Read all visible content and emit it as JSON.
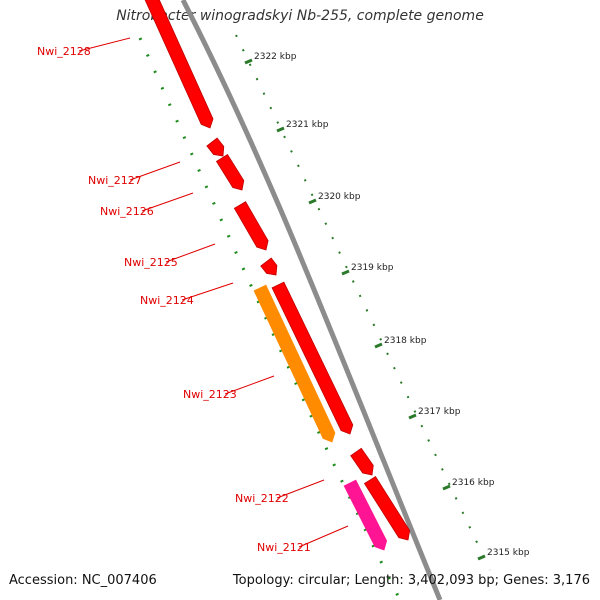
{
  "title": "Nitrobacter winogradskyi Nb-255, complete genome",
  "footer": {
    "accession": "Accession: NC_007406",
    "topology": "Topology: circular; Length: 3,402,093 bp; Genes: 3,176"
  },
  "ticks": [
    "2322 kbp",
    "2321 kbp",
    "2320 kbp",
    "2319 kbp",
    "2318 kbp",
    "2317 kbp",
    "2316 kbp",
    "2315 kbp"
  ],
  "genes": [
    {
      "name": "Nwi_2128",
      "color": "#ff0000"
    },
    {
      "name": "Nwi_2127",
      "color": "#ff0000"
    },
    {
      "name": "Nwi_2126",
      "color": "#ff0000"
    },
    {
      "name": "Nwi_2125",
      "color": "#ff0000"
    },
    {
      "name": "Nwi_2124",
      "color": "#ff0000"
    },
    {
      "name": "Nwi_2123",
      "color": "#ff8c00"
    },
    {
      "name": "Nwi_2122",
      "color": "#ff0000"
    },
    {
      "name": "Nwi_2121",
      "color": "#ff1493"
    }
  ],
  "colors": {
    "backbone": "#8c8c8c",
    "label": "#e00000",
    "tick": "#2a7a2a",
    "gc_dots": "#1e8c1e"
  }
}
